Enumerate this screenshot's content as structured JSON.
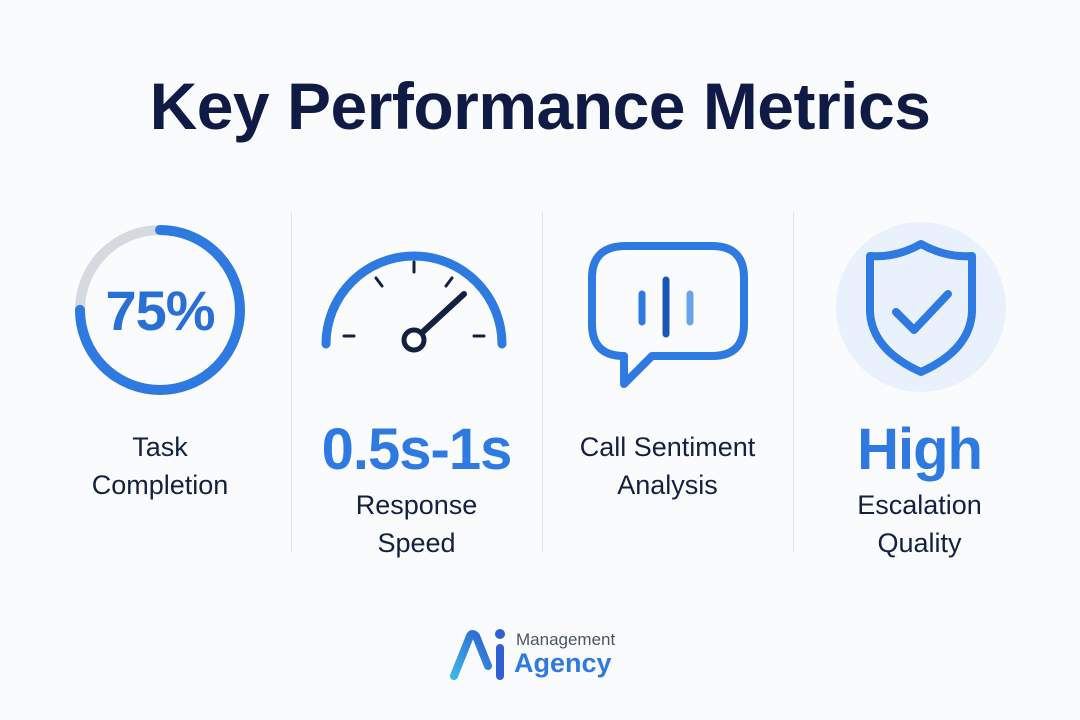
{
  "title": "Key Performance Metrics",
  "metrics": [
    {
      "value": "75%",
      "progress": 0.75,
      "label_line1": "Task",
      "label_line2": "Completion",
      "icon": "progress-ring-icon"
    },
    {
      "value": "0.5s-1s",
      "label_line1": "Response",
      "label_line2": "Speed",
      "icon": "speedometer-icon"
    },
    {
      "label_line1": "Call Sentiment",
      "label_line2": "Analysis",
      "icon": "speech-bubble-waveform-icon"
    },
    {
      "value": "High",
      "label_line1": "Escalation",
      "label_line2": "Quality",
      "icon": "shield-check-icon"
    }
  ],
  "brand": {
    "line1": "Management",
    "line2": "Agency",
    "logo": "ai-logo-icon"
  },
  "colors": {
    "accent": "#2f7ae0",
    "title": "#0f1b44",
    "track": "#d5d9e0",
    "shield_bg": "#e9f1fc"
  }
}
